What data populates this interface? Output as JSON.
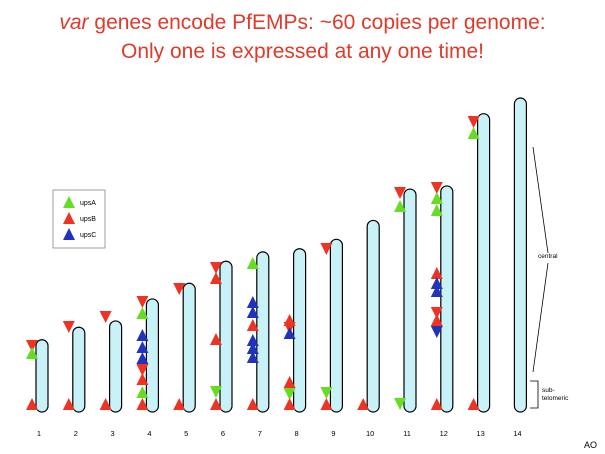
{
  "title": {
    "line1_italic": "var",
    "line1_rest": " genes encode PfEMPs: ~60 copies per genome:",
    "line2": "Only one is expressed at any one time!"
  },
  "legend": {
    "items": [
      {
        "name": "upsA",
        "color": "#66dd22"
      },
      {
        "name": "upsB",
        "color": "#ee3322"
      },
      {
        "name": "upsC",
        "color": "#2233bb"
      }
    ]
  },
  "annotations": {
    "central": "central",
    "subtelomeric": "sub-\ntelomeric"
  },
  "chromosome_color": "#c8f2f7",
  "chromosomes": [
    {
      "label": "1",
      "height_frac": 0.23
    },
    {
      "label": "2",
      "height_frac": 0.27
    },
    {
      "label": "3",
      "height_frac": 0.29
    },
    {
      "label": "4",
      "height_frac": 0.36
    },
    {
      "label": "5",
      "height_frac": 0.41
    },
    {
      "label": "6",
      "height_frac": 0.48
    },
    {
      "label": "7",
      "height_frac": 0.51
    },
    {
      "label": "8",
      "height_frac": 0.52
    },
    {
      "label": "9",
      "height_frac": 0.55
    },
    {
      "label": "10",
      "height_frac": 0.61
    },
    {
      "label": "11",
      "height_frac": 0.71
    },
    {
      "label": "12",
      "height_frac": 0.72
    },
    {
      "label": "13",
      "height_frac": 0.95
    },
    {
      "label": "14",
      "height_frac": 1.0
    }
  ],
  "ao": "AO"
}
